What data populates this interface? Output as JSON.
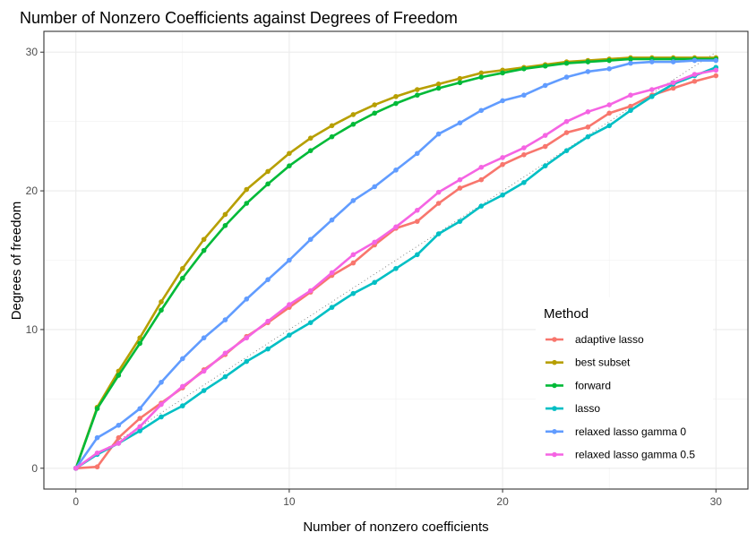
{
  "chart_data": {
    "type": "line",
    "title": "Number of Nonzero Coefficients against Degrees of Freedom",
    "xlabel": "Number of nonzero coefficients",
    "ylabel": "Degrees of freedom",
    "xlim": [
      -1.5,
      31.5
    ],
    "ylim": [
      -1.5,
      31.5
    ],
    "xticks": [
      0,
      10,
      20,
      30
    ],
    "yticks": [
      0,
      10,
      20,
      30
    ],
    "grid": true,
    "reference_line": "y = x (dotted)",
    "legend": {
      "title": "Method",
      "position": "right-inside"
    },
    "x": [
      0,
      1,
      2,
      3,
      4,
      5,
      6,
      7,
      8,
      9,
      10,
      11,
      12,
      13,
      14,
      15,
      16,
      17,
      18,
      19,
      20,
      21,
      22,
      23,
      24,
      25,
      26,
      27,
      28,
      29,
      30
    ],
    "series": [
      {
        "name": "adaptive lasso",
        "color": "#F8766D",
        "values": [
          0,
          0.1,
          2.2,
          3.6,
          4.7,
          5.8,
          7.1,
          8.2,
          9.5,
          10.5,
          11.6,
          12.7,
          13.9,
          14.8,
          16.1,
          17.3,
          17.8,
          19.1,
          20.2,
          20.8,
          21.9,
          22.6,
          23.2,
          24.2,
          24.6,
          25.6,
          26.1,
          26.9,
          27.4,
          27.9,
          28.3
        ]
      },
      {
        "name": "best subset",
        "color": "#B79F00",
        "values": [
          0,
          4.4,
          7.0,
          9.4,
          12.0,
          14.4,
          16.5,
          18.3,
          20.1,
          21.4,
          22.7,
          23.8,
          24.7,
          25.5,
          26.2,
          26.8,
          27.3,
          27.7,
          28.1,
          28.5,
          28.7,
          28.9,
          29.1,
          29.3,
          29.4,
          29.5,
          29.6,
          29.6,
          29.6,
          29.6,
          29.6
        ]
      },
      {
        "name": "forward",
        "color": "#00BA38",
        "values": [
          0,
          4.3,
          6.7,
          9.0,
          11.4,
          13.7,
          15.7,
          17.5,
          19.1,
          20.5,
          21.8,
          22.9,
          23.9,
          24.8,
          25.6,
          26.3,
          26.9,
          27.4,
          27.8,
          28.2,
          28.5,
          28.8,
          29.0,
          29.2,
          29.3,
          29.4,
          29.5,
          29.5,
          29.5,
          29.5,
          29.5
        ]
      },
      {
        "name": "lasso",
        "color": "#00BFC4",
        "values": [
          0,
          1.0,
          1.8,
          2.7,
          3.7,
          4.5,
          5.6,
          6.6,
          7.7,
          8.6,
          9.6,
          10.5,
          11.6,
          12.6,
          13.4,
          14.4,
          15.4,
          16.9,
          17.8,
          18.9,
          19.7,
          20.6,
          21.8,
          22.9,
          23.9,
          24.7,
          25.8,
          26.8,
          27.7,
          28.3,
          28.9
        ]
      },
      {
        "name": "relaxed lasso gamma 0",
        "color": "#619CFF",
        "values": [
          0,
          2.2,
          3.1,
          4.3,
          6.2,
          7.9,
          9.4,
          10.7,
          12.2,
          13.6,
          15.0,
          16.5,
          17.9,
          19.3,
          20.3,
          21.5,
          22.7,
          24.1,
          24.9,
          25.8,
          26.5,
          26.9,
          27.6,
          28.2,
          28.6,
          28.8,
          29.2,
          29.3,
          29.3,
          29.4,
          29.4
        ]
      },
      {
        "name": "relaxed lasso gamma 0.5",
        "color": "#F564E3",
        "values": [
          0,
          1.1,
          1.8,
          3.0,
          4.6,
          5.9,
          7.0,
          8.3,
          9.4,
          10.6,
          11.8,
          12.8,
          14.1,
          15.4,
          16.3,
          17.4,
          18.6,
          19.9,
          20.8,
          21.7,
          22.4,
          23.1,
          24.0,
          25.0,
          25.7,
          26.2,
          26.9,
          27.3,
          27.8,
          28.4,
          28.7
        ]
      }
    ]
  }
}
